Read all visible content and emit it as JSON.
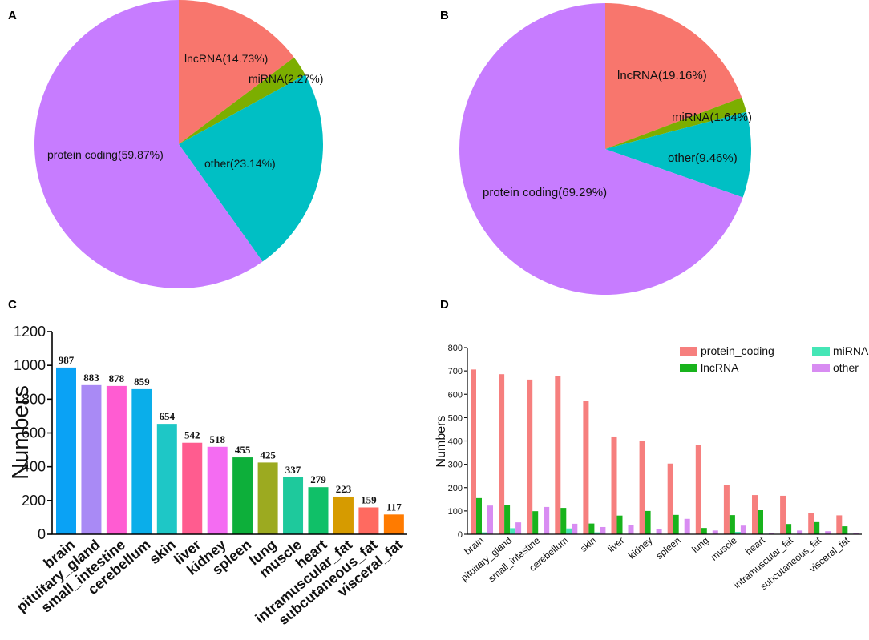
{
  "chart_data": [
    {
      "type": "pie",
      "panel": "A",
      "slices": [
        {
          "label": "lncRNA(14.73%)",
          "value": 14.73,
          "color": "#F8766D"
        },
        {
          "label": "miRNA(2.27%)",
          "value": 2.27,
          "color": "#7CAE00"
        },
        {
          "label": "other(23.14%)",
          "value": 23.14,
          "color": "#00BFC4"
        },
        {
          "label": "protein coding(59.87%)",
          "value": 59.87,
          "color": "#C77CFF"
        }
      ]
    },
    {
      "type": "pie",
      "panel": "B",
      "slices": [
        {
          "label": "lncRNA(19.16%)",
          "value": 19.16,
          "color": "#F8766D"
        },
        {
          "label": "miRNA(1.64%)",
          "value": 1.64,
          "color": "#7CAE00"
        },
        {
          "label": "other(9.46%)",
          "value": 9.46,
          "color": "#00BFC4"
        },
        {
          "label": "protein coding(69.29%)",
          "value": 69.29,
          "color": "#C77CFF"
        }
      ]
    },
    {
      "type": "bar",
      "panel": "C",
      "ylabel": "Numbers",
      "ylim": [
        0,
        1200
      ],
      "yticks": [
        0,
        200,
        400,
        600,
        800,
        1000,
        1200
      ],
      "categories": [
        "brain",
        "pituitary_gland",
        "small_intestine",
        "cerebellum",
        "skin",
        "liver",
        "kidney",
        "spleen",
        "lung",
        "muscle",
        "heart",
        "intramuscular_fat",
        "subcutaneous_fat",
        "visceral_fat"
      ],
      "values": [
        987,
        883,
        878,
        859,
        654,
        542,
        518,
        455,
        425,
        337,
        279,
        223,
        159,
        117
      ],
      "colors": [
        "#0AA2F5",
        "#A98AF5",
        "#FF5CD2",
        "#0AAEEA",
        "#1EC7C6",
        "#FF5C8F",
        "#F46CF2",
        "#0DAF3A",
        "#9CAA20",
        "#1EC99C",
        "#10C068",
        "#D69B00",
        "#FF6A60",
        "#FF7B00"
      ]
    },
    {
      "type": "bar",
      "panel": "D",
      "ylabel": "Numbers",
      "ylim": [
        0,
        800
      ],
      "yticks": [
        0,
        100,
        200,
        300,
        400,
        500,
        600,
        700,
        800
      ],
      "categories": [
        "brain",
        "pituitary_gland",
        "small_intestine",
        "cerebellum",
        "skin",
        "liver",
        "kidney",
        "spleen",
        "lung",
        "muscle",
        "heart",
        "intramuscular_fat",
        "subcutaneous_fat",
        "visceral_fat"
      ],
      "series": [
        {
          "name": "protein_coding",
          "color": "#F67F7E",
          "values": [
            706,
            686,
            663,
            679,
            573,
            419,
            399,
            303,
            382,
            211,
            168,
            165,
            90,
            81
          ]
        },
        {
          "name": "lncRNA",
          "color": "#18B31C",
          "values": [
            155,
            126,
            99,
            113,
            46,
            80,
            100,
            83,
            27,
            82,
            103,
            44,
            52,
            34
          ]
        },
        {
          "name": "miRNA",
          "color": "#45E6B6",
          "values": [
            8,
            26,
            2,
            25,
            8,
            2,
            2,
            2,
            2,
            10,
            2,
            2,
            2,
            2
          ]
        },
        {
          "name": "other",
          "color": "#D88CF2",
          "values": [
            123,
            51,
            117,
            45,
            31,
            41,
            21,
            66,
            16,
            37,
            6,
            16,
            13,
            6
          ]
        }
      ]
    }
  ]
}
